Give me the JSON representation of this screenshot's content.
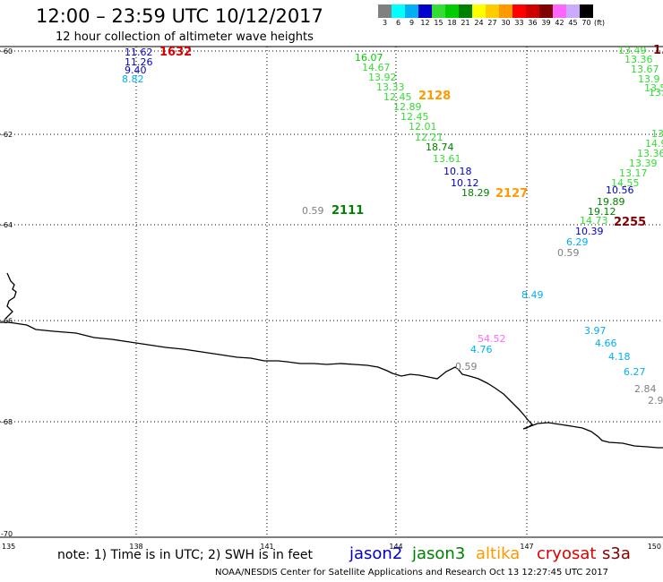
{
  "header": {
    "title": "12:00 – 23:59 UTC 10/12/2017",
    "subtitle": "12 hour collection of altimeter wave heights"
  },
  "legend": {
    "items": [
      {
        "label": "3",
        "color": "#808080"
      },
      {
        "label": "6",
        "color": "#00ffff"
      },
      {
        "label": "9",
        "color": "#00b0f0"
      },
      {
        "label": "12",
        "color": "#0000cc"
      },
      {
        "label": "15",
        "color": "#33dd33"
      },
      {
        "label": "18",
        "color": "#00cc00"
      },
      {
        "label": "21",
        "color": "#008000"
      },
      {
        "label": "24",
        "color": "#ffff00"
      },
      {
        "label": "27",
        "color": "#ffcc00"
      },
      {
        "label": "30",
        "color": "#ff9900"
      },
      {
        "label": "33",
        "color": "#ff0000"
      },
      {
        "label": "36",
        "color": "#cc0000"
      },
      {
        "label": "39",
        "color": "#800000"
      },
      {
        "label": "42",
        "color": "#ff66ff"
      },
      {
        "label": "45",
        "color": "#ccaaff"
      },
      {
        "label": "70",
        "color": "#000000"
      }
    ],
    "unit": "(ft)"
  },
  "map": {
    "lat_labels": [
      "-60",
      "-62",
      "-64",
      "-66",
      "-68",
      "-70"
    ],
    "lon_labels": [
      "135",
      "138",
      "141",
      "144",
      "147",
      "150"
    ],
    "track_ids": [
      {
        "text": "1632",
        "color": "#dd0000"
      },
      {
        "text": "2128",
        "color": "#ff9900"
      },
      {
        "text": "2111",
        "color": "#008000"
      },
      {
        "text": "2127",
        "color": "#ff9900"
      },
      {
        "text": "2255",
        "color": "#800000"
      },
      {
        "text": "1.",
        "color": "#800000"
      }
    ],
    "wave_heights": [
      {
        "text": "11.62",
        "color": "#0000cc"
      },
      {
        "text": "11.26",
        "color": "#0000cc"
      },
      {
        "text": "9.40",
        "color": "#0000cc"
      },
      {
        "text": "8.82",
        "color": "#00b0f0"
      },
      {
        "text": "16.07",
        "color": "#00cc00"
      },
      {
        "text": "14.67",
        "color": "#33dd33"
      },
      {
        "text": "13.92",
        "color": "#33dd33"
      },
      {
        "text": "13.33",
        "color": "#33dd33"
      },
      {
        "text": "12.45",
        "color": "#33dd33"
      },
      {
        "text": "12.89",
        "color": "#33dd33"
      },
      {
        "text": "12.45",
        "color": "#33dd33"
      },
      {
        "text": "12.01",
        "color": "#33dd33"
      },
      {
        "text": "12.21",
        "color": "#33dd33"
      },
      {
        "text": "18.74",
        "color": "#008000"
      },
      {
        "text": "13.61",
        "color": "#33dd33"
      },
      {
        "text": "10.18",
        "color": "#0000cc"
      },
      {
        "text": "10.12",
        "color": "#0000cc"
      },
      {
        "text": "18.29",
        "color": "#008000"
      },
      {
        "text": "0.59",
        "color": "#808080"
      },
      {
        "text": "13.49",
        "color": "#33dd33"
      },
      {
        "text": "13.36",
        "color": "#33dd33"
      },
      {
        "text": "13.67",
        "color": "#33dd33"
      },
      {
        "text": "13.9",
        "color": "#33dd33"
      },
      {
        "text": "13.5",
        "color": "#33dd33"
      },
      {
        "text": "13.",
        "color": "#33dd33"
      },
      {
        "text": "13",
        "color": "#33dd33"
      },
      {
        "text": "14.9",
        "color": "#33dd33"
      },
      {
        "text": "13.36",
        "color": "#33dd33"
      },
      {
        "text": "13.39",
        "color": "#33dd33"
      },
      {
        "text": "13.17",
        "color": "#33dd33"
      },
      {
        "text": "14.55",
        "color": "#33dd33"
      },
      {
        "text": "10.56",
        "color": "#0000cc"
      },
      {
        "text": "19.89",
        "color": "#008000"
      },
      {
        "text": "19.12",
        "color": "#008000"
      },
      {
        "text": "14.73",
        "color": "#33dd33"
      },
      {
        "text": "10.39",
        "color": "#0000cc"
      },
      {
        "text": "6.29",
        "color": "#00b0f0"
      },
      {
        "text": "0.59",
        "color": "#808080"
      },
      {
        "text": "8.49",
        "color": "#00b0f0"
      },
      {
        "text": "54.52",
        "color": "#ff66ff"
      },
      {
        "text": "4.76",
        "color": "#00b0f0"
      },
      {
        "text": "0.59",
        "color": "#808080"
      },
      {
        "text": "3.97",
        "color": "#00b0f0"
      },
      {
        "text": "4.66",
        "color": "#00b0f0"
      },
      {
        "text": "4.18",
        "color": "#00b0f0"
      },
      {
        "text": "6.27",
        "color": "#00b0f0"
      },
      {
        "text": "2.84",
        "color": "#808080"
      },
      {
        "text": "2.9",
        "color": "#808080"
      }
    ]
  },
  "footer": {
    "note": "note: 1) Time is in UTC; 2) SWH is in feet",
    "satellites": [
      {
        "name": "jason2",
        "color": "#0000cc"
      },
      {
        "name": "jason3",
        "color": "#008000"
      },
      {
        "name": "altika",
        "color": "#ff9900"
      },
      {
        "name": "cryosat",
        "color": "#dd0000"
      },
      {
        "name": "s3a",
        "color": "#800000"
      }
    ],
    "credit": "NOAA/NESDIS Center for Satellite Applications and Research    Oct 13 12:27:45 UTC 2017"
  }
}
